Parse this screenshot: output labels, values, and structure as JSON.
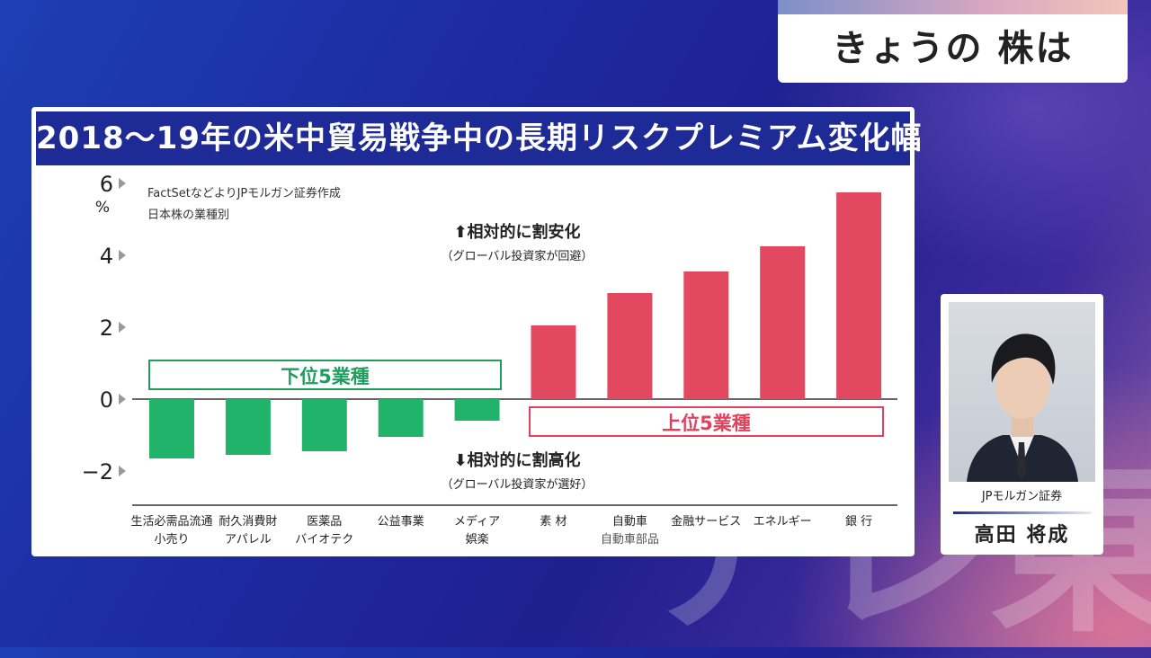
{
  "header": {
    "program_label": "きょうの 株は"
  },
  "watermark": "テレ東",
  "panel": {
    "title": "2018〜19年の米中貿易戦争中の長期リスクプレミアム変化幅",
    "source_line1": "FactSetなどよりJPモルガン証券作成",
    "source_line2": "日本株の業種別",
    "annot_up_main": "⬆相対的に割安化",
    "annot_up_sub": "（グローバル投資家が回避）",
    "annot_down_main": "⬇相対的に割高化",
    "annot_down_sub": "（グローバル投資家が選好）",
    "group_low": "下位5業種",
    "group_high": "上位5業種"
  },
  "chart_data": {
    "type": "bar",
    "title": "2018〜19年の米中貿易戦争中の長期リスクプレミアム変化幅",
    "y_unit": "%",
    "ylim": [
      -2.5,
      6
    ],
    "yticks": [
      {
        "value": 6,
        "label": "6"
      },
      {
        "value": 4,
        "label": "4"
      },
      {
        "value": 2,
        "label": "2"
      },
      {
        "value": 0,
        "label": "0"
      },
      {
        "value": -2,
        "label": "−2"
      }
    ],
    "categories": [
      {
        "line1": "生活必需品流通",
        "line2": "小売り"
      },
      {
        "line1": "耐久消費財",
        "line2": "アパレル"
      },
      {
        "line1": "医薬品",
        "line2": "バイオテク"
      },
      {
        "line1": "公益事業",
        "line2": ""
      },
      {
        "line1": "メディア",
        "line2": "娯楽"
      },
      {
        "line1": "素 材",
        "line2": ""
      },
      {
        "line1": "自動車",
        "line2": "自動車部品"
      },
      {
        "line1": "金融サービス",
        "line2": ""
      },
      {
        "line1": "エネルギー",
        "line2": ""
      },
      {
        "line1": "銀 行",
        "line2": ""
      }
    ],
    "values": [
      -1.65,
      -1.55,
      -1.45,
      -1.05,
      -0.6,
      2.05,
      2.95,
      3.55,
      4.25,
      5.75
    ],
    "colors": {
      "negative": "#21b36a",
      "positive": "#e2485f"
    }
  },
  "person": {
    "firm": "JPモルガン証券",
    "name": "高田 将成"
  }
}
